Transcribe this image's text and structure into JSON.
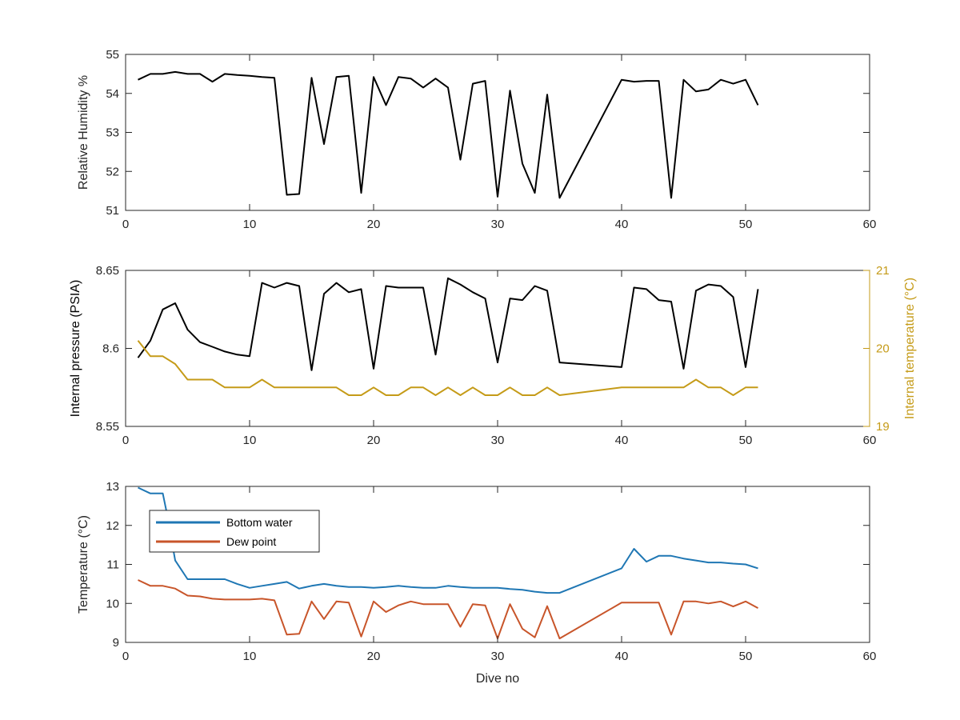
{
  "colors": {
    "axis": "#262626",
    "black_series": "#000000",
    "gold_series": "#C59B18",
    "blue_series": "#1F77B4",
    "orange_series": "#C8552A"
  },
  "chart_data": [
    {
      "type": "line",
      "title": "",
      "xlabel": "",
      "ylabel": "Relative Humidity %",
      "xlim": [
        0,
        60
      ],
      "ylim": [
        51,
        55
      ],
      "xticks": [
        "0",
        "10",
        "20",
        "30",
        "40",
        "50",
        "60"
      ],
      "yticks": [
        "51",
        "52",
        "53",
        "54",
        "55"
      ],
      "grid": false,
      "series": [
        {
          "name": "",
          "color": "#000000",
          "x": [
            1,
            2,
            3,
            4,
            5,
            6,
            7,
            8,
            9,
            10,
            11,
            12,
            13,
            14,
            15,
            16,
            17,
            18,
            19,
            20,
            21,
            22,
            23,
            24,
            25,
            26,
            27,
            28,
            29,
            30,
            31,
            32,
            33,
            34,
            35,
            40,
            41,
            42,
            43,
            44,
            45,
            46,
            47,
            48,
            49,
            50,
            51
          ],
          "y": [
            54.35,
            54.5,
            54.5,
            54.55,
            54.5,
            54.5,
            54.3,
            54.5,
            54.47,
            54.45,
            54.42,
            54.4,
            51.4,
            51.42,
            54.4,
            52.7,
            54.42,
            54.45,
            51.45,
            54.42,
            53.7,
            54.42,
            54.38,
            54.15,
            54.38,
            54.15,
            52.3,
            54.25,
            54.32,
            51.35,
            54.07,
            52.2,
            51.45,
            53.97,
            51.32,
            54.35,
            54.3,
            54.32,
            54.32,
            51.32,
            54.35,
            54.05,
            54.1,
            54.35,
            54.25,
            54.35,
            53.7
          ]
        }
      ]
    },
    {
      "type": "line",
      "title": "",
      "xlabel": "",
      "ylabel": "Internal pressure (PSIA)",
      "y2label": "Internal temperature (°C)",
      "xlim": [
        0,
        60
      ],
      "ylim": [
        8.55,
        8.65
      ],
      "y2lim": [
        19,
        21
      ],
      "xticks": [
        "0",
        "10",
        "20",
        "30",
        "40",
        "50",
        "60"
      ],
      "yticks": [
        "8.55",
        "8.6",
        "8.65"
      ],
      "y2ticks": [
        "19",
        "20",
        "21"
      ],
      "grid": false,
      "series": [
        {
          "name": "",
          "axis": "left",
          "color": "#000000",
          "x": [
            1,
            2,
            3,
            4,
            5,
            6,
            7,
            8,
            9,
            10,
            11,
            12,
            13,
            14,
            15,
            16,
            17,
            18,
            19,
            20,
            21,
            22,
            23,
            24,
            25,
            26,
            27,
            28,
            29,
            30,
            31,
            32,
            33,
            34,
            35,
            40,
            41,
            42,
            43,
            44,
            45,
            46,
            47,
            48,
            49,
            50,
            51
          ],
          "y": [
            8.594,
            8.605,
            8.625,
            8.629,
            8.612,
            8.604,
            8.601,
            8.598,
            8.596,
            8.595,
            8.642,
            8.639,
            8.642,
            8.64,
            8.586,
            8.635,
            8.642,
            8.636,
            8.638,
            8.587,
            8.64,
            8.639,
            8.639,
            8.639,
            8.596,
            8.645,
            8.641,
            8.636,
            8.632,
            8.591,
            8.632,
            8.631,
            8.64,
            8.637,
            8.591,
            8.588,
            8.639,
            8.638,
            8.631,
            8.63,
            8.587,
            8.637,
            8.641,
            8.64,
            8.633,
            8.588,
            8.638
          ]
        },
        {
          "name": "",
          "axis": "right",
          "color": "#C59B18",
          "x": [
            1,
            2,
            3,
            4,
            5,
            6,
            7,
            8,
            9,
            10,
            11,
            12,
            13,
            14,
            15,
            16,
            17,
            18,
            19,
            20,
            21,
            22,
            23,
            24,
            25,
            26,
            27,
            28,
            29,
            30,
            31,
            32,
            33,
            34,
            35,
            40,
            41,
            42,
            43,
            44,
            45,
            46,
            47,
            48,
            49,
            50,
            51
          ],
          "y": [
            20.1,
            19.9,
            19.9,
            19.8,
            19.6,
            19.6,
            19.6,
            19.5,
            19.5,
            19.5,
            19.6,
            19.5,
            19.5,
            19.5,
            19.5,
            19.5,
            19.5,
            19.4,
            19.4,
            19.5,
            19.4,
            19.4,
            19.5,
            19.5,
            19.4,
            19.5,
            19.4,
            19.5,
            19.4,
            19.4,
            19.5,
            19.4,
            19.4,
            19.5,
            19.4,
            19.5,
            19.5,
            19.5,
            19.5,
            19.5,
            19.5,
            19.6,
            19.5,
            19.5,
            19.4,
            19.5,
            19.5
          ]
        }
      ]
    },
    {
      "type": "line",
      "title": "",
      "xlabel": "Dive no",
      "ylabel": "Temperature (°C)",
      "xlim": [
        0,
        60
      ],
      "ylim": [
        9,
        13
      ],
      "xticks": [
        "0",
        "10",
        "20",
        "30",
        "40",
        "50",
        "60"
      ],
      "yticks": [
        "9",
        "10",
        "11",
        "12",
        "13"
      ],
      "grid": false,
      "legend": "top-left",
      "series": [
        {
          "name": "Bottom water",
          "color": "#1F77B4",
          "x": [
            1,
            2,
            3,
            3.3,
            4,
            5,
            6,
            7,
            8,
            9,
            10,
            11,
            12,
            13,
            14,
            15,
            16,
            17,
            18,
            19,
            20,
            21,
            22,
            23,
            24,
            25,
            26,
            27,
            28,
            29,
            30,
            31,
            32,
            33,
            34,
            35,
            40,
            41,
            42,
            43,
            44,
            45,
            46,
            47,
            48,
            49,
            50,
            51
          ],
          "y": [
            12.97,
            12.82,
            12.82,
            12.35,
            11.1,
            10.62,
            10.62,
            10.62,
            10.62,
            10.5,
            10.4,
            10.45,
            10.5,
            10.55,
            10.38,
            10.45,
            10.5,
            10.45,
            10.42,
            10.42,
            10.4,
            10.42,
            10.45,
            10.42,
            10.4,
            10.4,
            10.45,
            10.42,
            10.4,
            10.4,
            10.4,
            10.37,
            10.35,
            10.3,
            10.27,
            10.27,
            10.9,
            11.4,
            11.07,
            11.22,
            11.22,
            11.15,
            11.1,
            11.05,
            11.05,
            11.02,
            11.0,
            10.9
          ]
        },
        {
          "name": "Dew point",
          "color": "#C8552A",
          "x": [
            1,
            2,
            3,
            4,
            5,
            6,
            7,
            8,
            9,
            10,
            11,
            12,
            13,
            14,
            15,
            16,
            17,
            18,
            19,
            20,
            21,
            22,
            23,
            24,
            25,
            26,
            27,
            28,
            29,
            30,
            31,
            32,
            33,
            34,
            35,
            40,
            41,
            42,
            43,
            44,
            45,
            46,
            47,
            48,
            49,
            50,
            51
          ],
          "y": [
            10.6,
            10.45,
            10.45,
            10.38,
            10.2,
            10.18,
            10.12,
            10.1,
            10.1,
            10.1,
            10.12,
            10.08,
            9.2,
            9.22,
            10.05,
            9.6,
            10.05,
            10.02,
            9.15,
            10.05,
            9.78,
            9.95,
            10.05,
            9.98,
            9.98,
            9.98,
            9.4,
            9.98,
            9.95,
            9.1,
            9.98,
            9.35,
            9.13,
            9.93,
            9.1,
            10.02,
            10.02,
            10.02,
            10.02,
            9.2,
            10.05,
            10.05,
            10.0,
            10.05,
            9.92,
            10.05,
            9.88
          ]
        }
      ]
    }
  ]
}
